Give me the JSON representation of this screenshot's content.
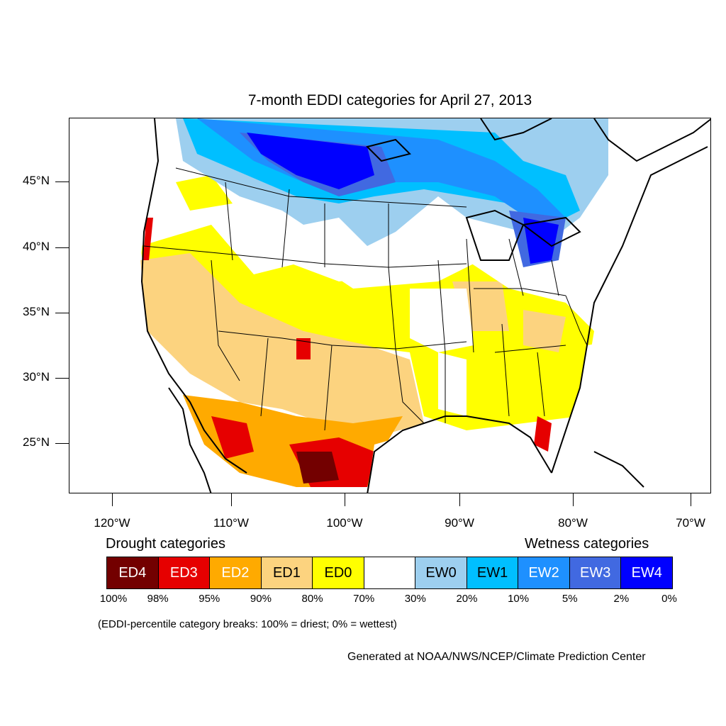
{
  "title": "7-month EDDI categories for April 27, 2013",
  "map": {
    "lat_ticks": [
      "45°N",
      "40°N",
      "35°N",
      "30°N",
      "25°N"
    ],
    "lon_ticks": [
      "120°W",
      "110°W",
      "100°W",
      "90°W",
      "80°W",
      "70°W"
    ]
  },
  "legend": {
    "drought_heading": "Drought categories",
    "wetness_heading": "Wetness categories",
    "categories": [
      {
        "label": "ED4",
        "color": "#730000",
        "text_color": "#ffffff"
      },
      {
        "label": "ED3",
        "color": "#e60000",
        "text_color": "#ffffff"
      },
      {
        "label": "ED2",
        "color": "#ffaa00",
        "text_color": "#ffffff"
      },
      {
        "label": "ED1",
        "color": "#fcd37f",
        "text_color": "#000000"
      },
      {
        "label": "ED0",
        "color": "#ffff00",
        "text_color": "#000000"
      },
      {
        "label": "",
        "color": "#ffffff",
        "text_color": "#000000"
      },
      {
        "label": "EW0",
        "color": "#9dcfef",
        "text_color": "#000000"
      },
      {
        "label": "EW1",
        "color": "#00bfff",
        "text_color": "#000000"
      },
      {
        "label": "EW2",
        "color": "#1e90ff",
        "text_color": "#ffffff"
      },
      {
        "label": "EW3",
        "color": "#4169e1",
        "text_color": "#ffffff"
      },
      {
        "label": "EW4",
        "color": "#0000ff",
        "text_color": "#ffffff"
      }
    ],
    "breaks": [
      "100%",
      "98%",
      "95%",
      "90%",
      "80%",
      "70%",
      "30%",
      "20%",
      "10%",
      "5%",
      "2%",
      "0%"
    ]
  },
  "note": "(EDDI-percentile category breaks: 100% = driest; 0% = wettest)",
  "credit": "Generated at NOAA/NWS/NCEP/Climate Prediction Center"
}
